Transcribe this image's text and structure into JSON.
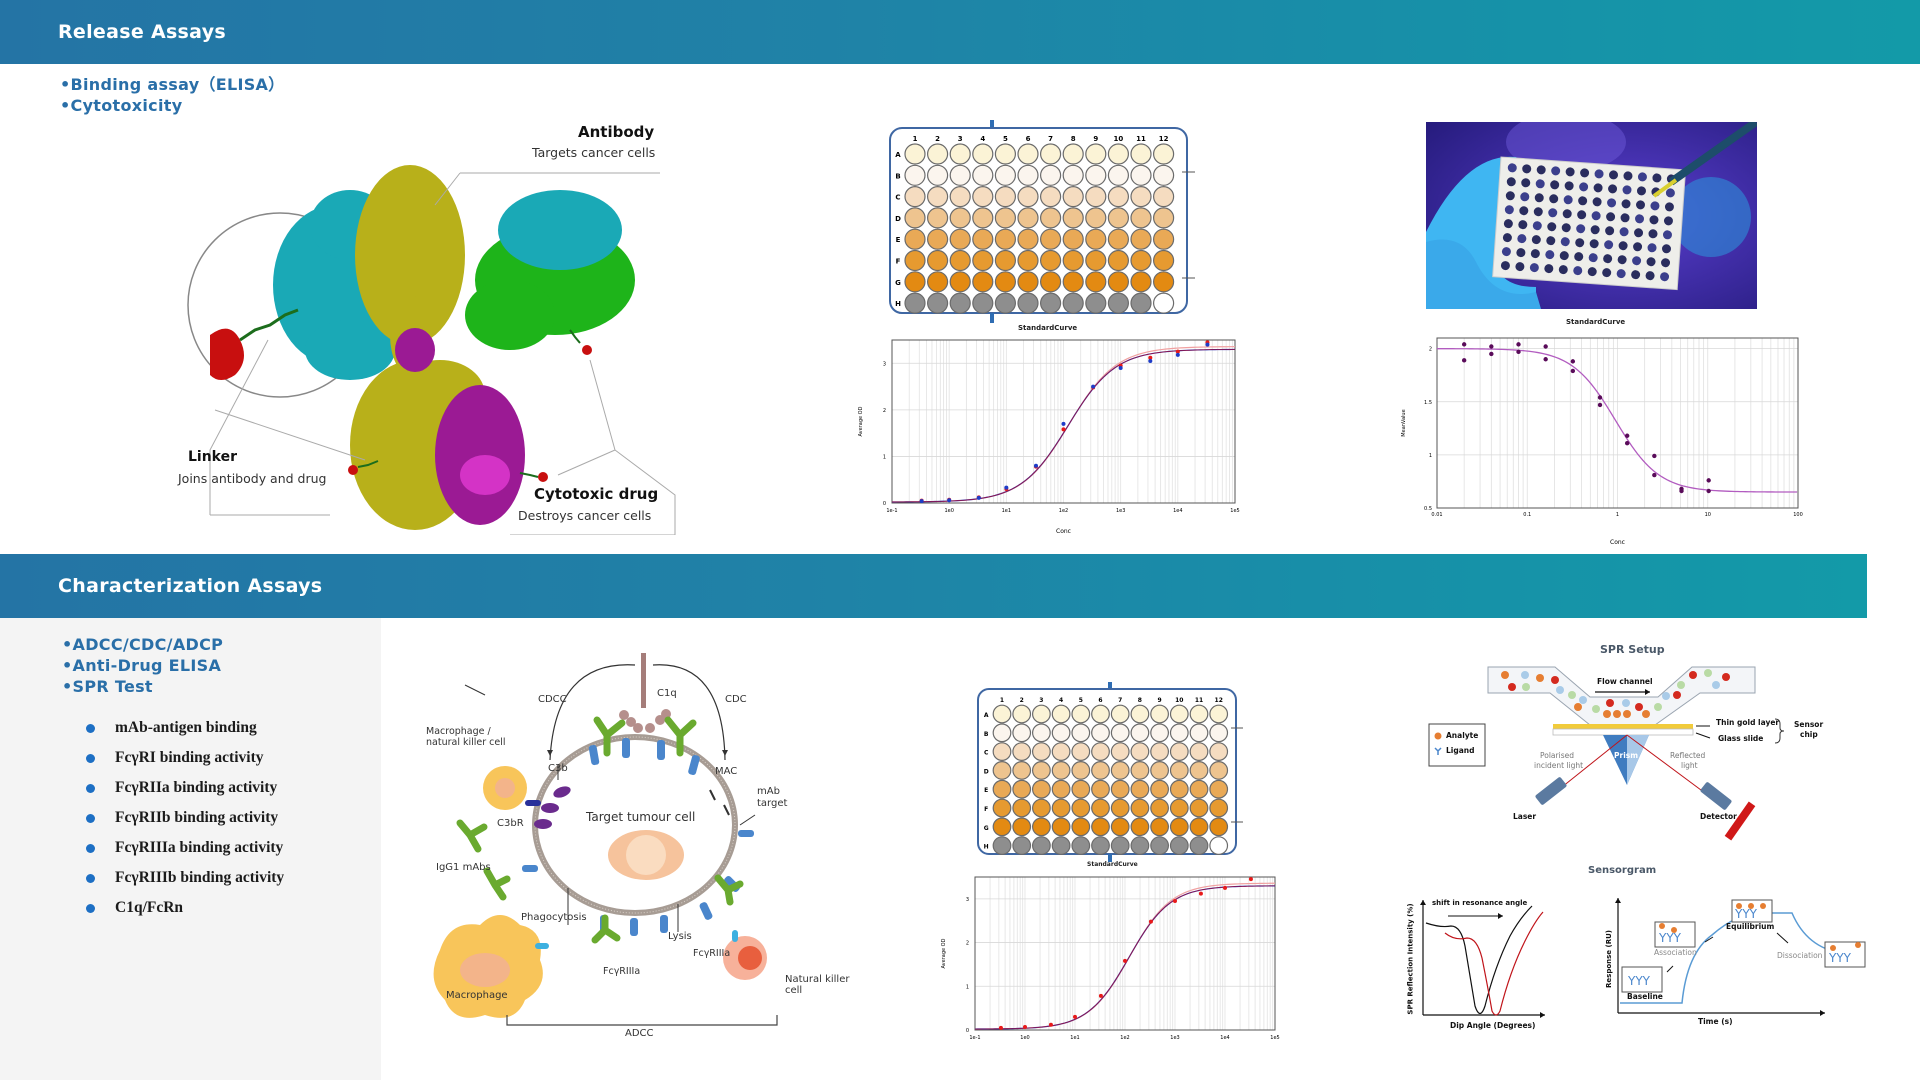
{
  "colors": {
    "header_start": "#2474a5",
    "header_end": "#139aa8",
    "bullet_text": "#2a6fa8",
    "list_dot": "#1d6fc4",
    "left_panel_bg": "#f4f4f4"
  },
  "release": {
    "title": "Release Assays",
    "bullets": [
      "•Binding assay（ELISA）",
      "•Cytotoxicity"
    ],
    "adc_figure": {
      "antibody_title": "Antibody",
      "antibody_sub": "Targets cancer cells",
      "linker_title": "Linker",
      "linker_sub": "Joins antibody and drug",
      "drug_title": "Cytotoxic drug",
      "drug_sub": "Destroys cancer cells"
    },
    "plate": {
      "columns": [
        "1",
        "2",
        "3",
        "4",
        "5",
        "6",
        "7",
        "8",
        "9",
        "10",
        "11",
        "12"
      ],
      "rows": [
        "A",
        "B",
        "C",
        "D",
        "E",
        "F",
        "G",
        "H"
      ],
      "caption": "StandardCurve"
    },
    "right_chart_title": "StandardCurve"
  },
  "characterization": {
    "title": "Characterization Assays",
    "bullets": [
      "•ADCC/CDC/ADCP",
      "•Anti-Drug ELISA",
      "•SPR Test"
    ],
    "items": [
      "mAb-antigen binding",
      "FcγRI binding activity",
      "FcγRIIa binding activity",
      "FcγRIIb binding activity",
      "FcγRIIIa binding activity",
      "FcγRIIIb binding activity",
      "C1q/FcRn"
    ],
    "adcc_figure": {
      "c1q": "C1q",
      "cdcc": "CDCC",
      "cdc": "CDC",
      "macrophage_nk": "Macrophage /",
      "macrophage_nk2": "natural killer cell",
      "c3b": "C3b",
      "mac": "MAC",
      "mab_target": "mAb",
      "mab_target2": "target",
      "c3br": "C3bR",
      "target_cell": "Target tumour cell",
      "igg1": "IgG1 mAbs",
      "phagocytosis": "Phagocytosis",
      "lysis": "Lysis",
      "fcr1": "FcγRIIIa",
      "fcr2": "FcγRIIIa",
      "macrophage": "Macrophage",
      "nk": "Natural killer",
      "nk2": "cell",
      "adcc": "ADCC"
    },
    "spr": {
      "title": "SPR Setup",
      "flow": "Flow channel",
      "gold": "Thin gold layer",
      "glass": "Glass slide",
      "sensor": "Sensor",
      "sensor2": "chip",
      "analyte": "Analyte",
      "ligand": "Ligand",
      "prism": "Prism",
      "polarised": "Polarised",
      "polarised2": "incident light",
      "reflected": "Reflected",
      "reflected2": "light",
      "laser": "Laser",
      "detector": "Detector"
    },
    "sensorgram": {
      "title": "Sensorgram",
      "shift": "shift in resonance angle",
      "ylabel_left": "SPR Reflection Intensity (%)",
      "xlabel_left": "Dip Angle (Degrees)",
      "ylabel_right": "Response (RU)",
      "xlabel_right": "Time (s)",
      "baseline": "Baseline",
      "association": "Association",
      "equilibrium": "Equilibrium",
      "dissociation": "Dissociation"
    }
  },
  "chart_data": [
    {
      "type": "scatter",
      "title": "",
      "xlabel": "Conc",
      "ylabel": "Average OD",
      "xscale": "log",
      "xticks": [
        "1e-1",
        "1e0",
        "1e1",
        "1e2",
        "1e3",
        "1e4",
        "1e5"
      ],
      "yticks": [
        "0",
        "1",
        "2",
        "3"
      ],
      "ylim": [
        0,
        3.5
      ],
      "series": [
        {
          "name": "replicate-red",
          "x": [
            0.33,
            1,
            3.3,
            10,
            33,
            100,
            330,
            1000,
            3300,
            10000,
            33000
          ],
          "y": [
            0.05,
            0.07,
            0.12,
            0.3,
            0.78,
            1.58,
            2.48,
            2.95,
            3.12,
            3.25,
            3.45
          ]
        },
        {
          "name": "replicate-blue",
          "x": [
            0.33,
            1,
            3.3,
            10,
            33,
            100,
            330,
            1000,
            3300,
            10000,
            33000
          ],
          "y": [
            0.04,
            0.06,
            0.11,
            0.33,
            0.8,
            1.7,
            2.5,
            2.9,
            3.05,
            3.18,
            3.4
          ]
        }
      ],
      "fit": "4PL sigmoid, top≈3.3, bottom≈0.02"
    },
    {
      "type": "scatter",
      "title": "StandardCurve",
      "xlabel": "Conc",
      "ylabel": "MeanValue",
      "xscale": "log",
      "xticks": [
        "0.01",
        "0.1",
        "1",
        "10",
        "100"
      ],
      "yticks": [
        "0.5",
        "1",
        "1.5",
        "2"
      ],
      "ylim": [
        0.5,
        2.1
      ],
      "series": [
        {
          "name": "points",
          "x": [
            0.02,
            0.02,
            0.04,
            0.04,
            0.08,
            0.08,
            0.16,
            0.16,
            0.32,
            0.32,
            0.64,
            0.64,
            1.28,
            1.28,
            2.56,
            2.56,
            5.12,
            5.12,
            10.24,
            10.24
          ],
          "y": [
            2.04,
            1.89,
            2.02,
            1.95,
            2.04,
            1.97,
            2.02,
            1.9,
            1.88,
            1.79,
            1.54,
            1.47,
            1.18,
            1.11,
            0.99,
            0.81,
            0.68,
            0.66,
            0.76,
            0.66
          ]
        }
      ],
      "fit": "4PL decreasing sigmoid, top≈2.0, bottom≈0.65"
    },
    {
      "type": "scatter",
      "title": "",
      "xlabel": "Conc",
      "ylabel": "Average OD",
      "xscale": "log",
      "xticks": [
        "1e-1",
        "1e0",
        "1e1",
        "1e2",
        "1e3",
        "1e4",
        "1e5"
      ],
      "yticks": [
        "0",
        "1",
        "2",
        "3"
      ],
      "ylim": [
        0,
        3.5
      ],
      "series": [
        {
          "name": "replicate-red",
          "x": [
            0.33,
            1,
            3.3,
            10,
            33,
            100,
            330,
            1000,
            3300,
            10000,
            33000
          ],
          "y": [
            0.05,
            0.07,
            0.12,
            0.3,
            0.78,
            1.58,
            2.48,
            2.95,
            3.12,
            3.25,
            3.45
          ]
        }
      ]
    },
    {
      "type": "line",
      "title": "Sensorgram",
      "xlabel": "Dip Angle (Degrees)",
      "ylabel": "SPR Reflection Intensity (%)",
      "series": [
        {
          "name": "before",
          "color": "#111111"
        },
        {
          "name": "after",
          "color": "#c0141a"
        }
      ],
      "annotations": [
        "shift in resonance angle"
      ]
    },
    {
      "type": "line",
      "title": "Sensorgram",
      "xlabel": "Time (s)",
      "ylabel": "Response (RU)",
      "phases": [
        "Baseline",
        "Association",
        "Equilibrium",
        "Dissociation"
      ]
    }
  ]
}
